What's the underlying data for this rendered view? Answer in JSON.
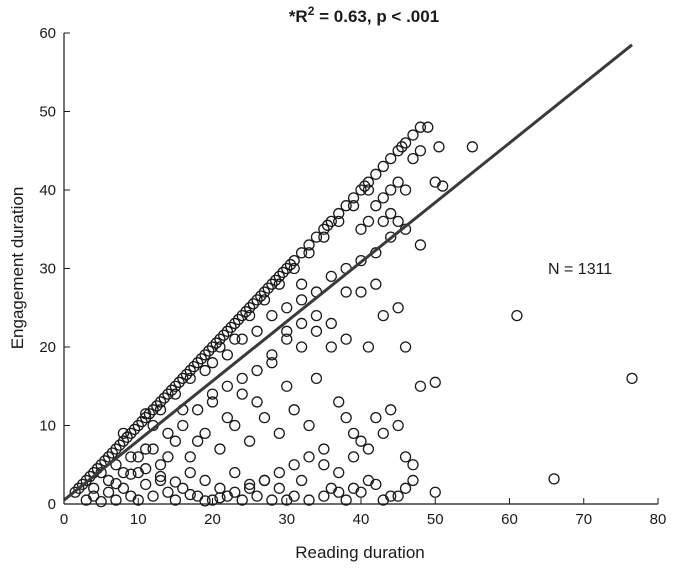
{
  "chart_data": {
    "type": "scatter",
    "title_prefix": "*R",
    "title_sup": "2",
    "title_suffix": " = 0.63, p < .001",
    "xlabel": "Reading duration",
    "ylabel": "Engagement duration",
    "annotation": "N = 1311",
    "xlim": [
      0,
      80
    ],
    "ylim": [
      0,
      60
    ],
    "xticks": [
      0,
      10,
      20,
      30,
      40,
      50,
      60,
      70,
      80
    ],
    "yticks": [
      0,
      10,
      20,
      30,
      40,
      50,
      60
    ],
    "grid": false,
    "regression_line": {
      "x": [
        0,
        76.5
      ],
      "y": [
        0.5,
        58.5
      ]
    },
    "diagonal_points": [
      [
        1.5,
        1.5
      ],
      [
        2,
        2
      ],
      [
        2.5,
        2.5
      ],
      [
        3,
        3
      ],
      [
        3.5,
        3.5
      ],
      [
        4,
        4
      ],
      [
        4.5,
        4.5
      ],
      [
        5,
        5
      ],
      [
        5.5,
        5.5
      ],
      [
        6,
        6
      ],
      [
        6.5,
        6.5
      ],
      [
        7,
        7
      ],
      [
        7.5,
        7.5
      ],
      [
        8,
        8
      ],
      [
        8.5,
        8.5
      ],
      [
        9,
        9
      ],
      [
        9.5,
        9.5
      ],
      [
        10,
        10
      ],
      [
        10.5,
        10.5
      ],
      [
        11,
        11
      ],
      [
        11.5,
        11.5
      ],
      [
        12,
        12
      ],
      [
        12.5,
        12.5
      ],
      [
        13,
        13
      ],
      [
        13.5,
        13.5
      ],
      [
        14,
        14
      ],
      [
        14.5,
        14.5
      ],
      [
        15,
        15
      ],
      [
        15.5,
        15.5
      ],
      [
        16,
        16
      ],
      [
        16.5,
        16.5
      ],
      [
        17,
        17
      ],
      [
        17.5,
        17.5
      ],
      [
        18,
        18
      ],
      [
        18.5,
        18.5
      ],
      [
        19,
        19
      ],
      [
        19.5,
        19.5
      ],
      [
        20,
        20
      ],
      [
        20.5,
        20.5
      ],
      [
        21,
        21
      ],
      [
        21.5,
        21.5
      ],
      [
        22,
        22
      ],
      [
        22.5,
        22.5
      ],
      [
        23,
        23
      ],
      [
        23.5,
        23.5
      ],
      [
        24,
        24
      ],
      [
        24.5,
        24.5
      ],
      [
        25,
        25
      ],
      [
        25.5,
        25.5
      ],
      [
        26,
        26
      ],
      [
        26.5,
        26.5
      ],
      [
        27,
        27
      ],
      [
        27.5,
        27.5
      ],
      [
        28,
        28
      ],
      [
        28.5,
        28.5
      ],
      [
        29,
        29
      ],
      [
        29.5,
        29.5
      ],
      [
        30,
        30
      ],
      [
        30.5,
        30.5
      ],
      [
        31,
        31
      ],
      [
        32,
        32
      ],
      [
        33,
        33
      ],
      [
        34,
        34
      ],
      [
        35,
        35
      ],
      [
        35.5,
        35.5
      ],
      [
        36,
        36
      ],
      [
        37,
        37
      ],
      [
        38,
        38
      ],
      [
        39,
        39
      ],
      [
        40,
        40
      ],
      [
        40.5,
        40.5
      ],
      [
        41,
        41
      ],
      [
        42,
        42
      ],
      [
        43,
        43
      ],
      [
        44,
        44
      ],
      [
        45,
        45
      ],
      [
        45.5,
        45.5
      ],
      [
        46,
        46
      ],
      [
        47,
        47
      ],
      [
        48,
        48
      ]
    ],
    "scatter_points": [
      [
        3,
        0.5
      ],
      [
        4,
        1
      ],
      [
        5,
        0.3
      ],
      [
        6,
        1.5
      ],
      [
        7,
        0.5
      ],
      [
        8,
        2
      ],
      [
        9,
        1
      ],
      [
        10,
        0.5
      ],
      [
        11,
        2.5
      ],
      [
        12,
        1
      ],
      [
        13,
        3
      ],
      [
        14,
        1.5
      ],
      [
        15,
        0.5
      ],
      [
        16,
        2
      ],
      [
        17,
        4
      ],
      [
        18,
        1
      ],
      [
        19,
        3
      ],
      [
        20,
        0.5
      ],
      [
        21,
        2
      ],
      [
        22,
        1
      ],
      [
        23,
        4
      ],
      [
        24,
        0.5
      ],
      [
        25,
        2
      ],
      [
        26,
        1
      ],
      [
        27,
        3
      ],
      [
        28,
        0.5
      ],
      [
        29,
        2
      ],
      [
        30,
        0.5
      ],
      [
        31,
        1
      ],
      [
        32,
        3
      ],
      [
        33,
        0.5
      ],
      [
        35,
        1
      ],
      [
        36,
        2
      ],
      [
        38,
        0.5
      ],
      [
        40,
        1.5
      ],
      [
        42,
        2.5
      ],
      [
        44,
        1
      ],
      [
        46,
        2
      ],
      [
        50,
        1.5
      ],
      [
        5,
        4
      ],
      [
        7,
        5
      ],
      [
        9,
        6
      ],
      [
        11,
        7
      ],
      [
        13,
        5
      ],
      [
        15,
        8
      ],
      [
        17,
        6
      ],
      [
        19,
        9
      ],
      [
        21,
        7
      ],
      [
        23,
        10
      ],
      [
        25,
        8
      ],
      [
        27,
        11
      ],
      [
        29,
        9
      ],
      [
        31,
        12
      ],
      [
        33,
        10
      ],
      [
        35,
        5
      ],
      [
        37,
        4
      ],
      [
        39,
        6
      ],
      [
        41,
        7
      ],
      [
        43,
        9
      ],
      [
        45,
        10
      ],
      [
        47,
        5
      ],
      [
        8,
        9
      ],
      [
        10,
        4
      ],
      [
        12,
        10
      ],
      [
        14,
        6
      ],
      [
        16,
        12
      ],
      [
        18,
        8
      ],
      [
        20,
        14
      ],
      [
        22,
        11
      ],
      [
        24,
        16
      ],
      [
        26,
        13
      ],
      [
        28,
        18
      ],
      [
        30,
        15
      ],
      [
        32,
        20
      ],
      [
        34,
        16
      ],
      [
        36,
        20
      ],
      [
        38,
        21
      ],
      [
        41,
        20
      ],
      [
        43,
        24
      ],
      [
        45,
        25
      ],
      [
        46,
        20
      ],
      [
        48,
        15
      ],
      [
        50,
        15.5
      ],
      [
        20,
        18
      ],
      [
        22,
        19
      ],
      [
        24,
        21
      ],
      [
        26,
        22
      ],
      [
        28,
        24
      ],
      [
        30,
        25
      ],
      [
        32,
        26
      ],
      [
        34,
        24
      ],
      [
        36,
        23
      ],
      [
        38,
        30
      ],
      [
        40,
        31
      ],
      [
        42,
        32
      ],
      [
        44,
        34
      ],
      [
        46,
        35
      ],
      [
        48,
        33
      ],
      [
        30,
        22
      ],
      [
        32,
        28
      ],
      [
        34,
        27
      ],
      [
        36,
        29
      ],
      [
        38,
        27
      ],
      [
        40,
        27
      ],
      [
        42,
        28
      ],
      [
        43,
        36
      ],
      [
        44,
        37
      ],
      [
        45,
        36
      ],
      [
        40,
        35
      ],
      [
        41,
        36
      ],
      [
        42,
        38
      ],
      [
        43,
        39
      ],
      [
        44,
        40
      ],
      [
        45,
        41
      ],
      [
        46,
        40
      ],
      [
        47,
        44
      ],
      [
        48,
        45
      ],
      [
        49,
        48
      ],
      [
        50,
        41
      ],
      [
        51,
        40.5
      ],
      [
        50.5,
        45.5
      ],
      [
        55,
        45.5
      ],
      [
        61,
        24
      ],
      [
        66,
        3.2
      ],
      [
        76.5,
        16
      ],
      [
        11,
        11.5
      ],
      [
        13,
        12
      ],
      [
        15,
        14
      ],
      [
        17,
        16
      ],
      [
        19,
        17
      ],
      [
        21,
        20
      ],
      [
        23,
        21
      ],
      [
        25,
        24
      ],
      [
        27,
        26
      ],
      [
        29,
        28
      ],
      [
        31,
        30
      ],
      [
        33,
        32
      ],
      [
        35,
        34
      ],
      [
        37,
        36
      ],
      [
        39,
        38
      ],
      [
        41,
        40
      ],
      [
        4,
        2
      ],
      [
        6,
        3
      ],
      [
        8,
        4
      ],
      [
        10,
        6
      ],
      [
        12,
        7
      ],
      [
        14,
        9
      ],
      [
        16,
        10
      ],
      [
        18,
        12
      ],
      [
        20,
        13
      ],
      [
        22,
        15
      ],
      [
        24,
        14
      ],
      [
        26,
        17
      ],
      [
        28,
        19
      ],
      [
        30,
        21
      ],
      [
        32,
        23
      ],
      [
        34,
        22
      ],
      [
        37,
        13
      ],
      [
        38,
        11
      ],
      [
        39,
        9
      ],
      [
        40,
        8
      ],
      [
        42,
        11
      ],
      [
        44,
        12
      ],
      [
        46,
        6
      ],
      [
        47,
        3
      ],
      [
        45,
        1
      ],
      [
        43,
        0.5
      ],
      [
        41,
        3
      ],
      [
        39,
        2
      ],
      [
        37,
        1.5
      ],
      [
        35,
        7
      ],
      [
        33,
        6
      ],
      [
        31,
        5
      ],
      [
        29,
        4
      ],
      [
        27,
        3
      ],
      [
        25,
        2.5
      ],
      [
        23,
        1.5
      ],
      [
        21,
        0.8
      ],
      [
        19,
        0.4
      ],
      [
        17,
        1.2
      ],
      [
        15,
        2.8
      ],
      [
        13,
        3.5
      ],
      [
        11,
        4.5
      ],
      [
        9,
        3.8
      ],
      [
        7,
        2.6
      ]
    ]
  }
}
